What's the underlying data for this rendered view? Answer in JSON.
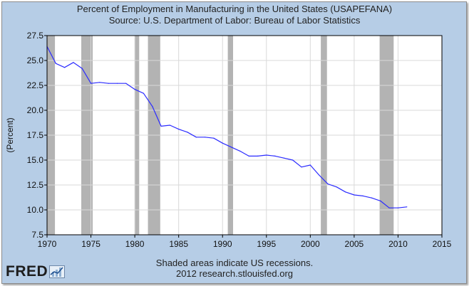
{
  "title_line1": "Percent of Employment in Manufacturing in the United States (USAPEFANA)",
  "title_line2": "Source: U.S. Department of Labor: Bureau of Labor Statistics",
  "footer_line1": "Shaded areas indicate US recessions.",
  "footer_line2": "2012 research.stlouisfed.org",
  "logo_text": "FRED",
  "colors": {
    "background": "#b6cde6",
    "plot_bg": "#ffffff",
    "line": "#2b2bff",
    "recession": "#b3b3b3",
    "grid": "#d9d9d9"
  },
  "chart_data": {
    "type": "line",
    "title": "Percent of Employment in Manufacturing in the United States (USAPEFANA)",
    "subtitle": "Source: U.S. Department of Labor: Bureau of Labor Statistics",
    "xlabel": "",
    "ylabel": "(Percent)",
    "xlim": [
      1970,
      2015
    ],
    "ylim": [
      7.5,
      27.5
    ],
    "xticks": [
      1970,
      1975,
      1980,
      1985,
      1990,
      1995,
      2000,
      2005,
      2010,
      2015
    ],
    "yticks": [
      7.5,
      10.0,
      12.5,
      15.0,
      17.5,
      20.0,
      22.5,
      25.0,
      27.5
    ],
    "ytick_labels": [
      "7.5",
      "10.0",
      "12.5",
      "15.0",
      "17.5",
      "20.0",
      "22.5",
      "25.0",
      "27.5"
    ],
    "grid": true,
    "series": [
      {
        "name": "USAPEFANA",
        "x": [
          1970,
          1971,
          1972,
          1973,
          1974,
          1975,
          1976,
          1977,
          1978,
          1979,
          1980,
          1981,
          1982,
          1983,
          1984,
          1985,
          1986,
          1987,
          1988,
          1989,
          1990,
          1991,
          1992,
          1993,
          1994,
          1995,
          1996,
          1997,
          1998,
          1999,
          2000,
          2001,
          2002,
          2003,
          2004,
          2005,
          2006,
          2007,
          2008,
          2009,
          2010,
          2011
        ],
        "values": [
          26.4,
          24.7,
          24.3,
          24.8,
          24.2,
          22.7,
          22.8,
          22.7,
          22.7,
          22.7,
          22.1,
          21.7,
          20.4,
          18.4,
          18.5,
          18.1,
          17.8,
          17.3,
          17.3,
          17.2,
          16.7,
          16.3,
          15.9,
          15.4,
          15.4,
          15.5,
          15.4,
          15.2,
          15.0,
          14.3,
          14.5,
          13.5,
          12.6,
          12.3,
          11.8,
          11.5,
          11.4,
          11.2,
          10.9,
          10.2,
          10.2,
          10.3
        ]
      }
    ],
    "recessions": [
      [
        1970.0,
        1970.9
      ],
      [
        1973.9,
        1975.2
      ],
      [
        1980.0,
        1980.5
      ],
      [
        1981.5,
        1982.9
      ],
      [
        1990.6,
        1991.2
      ],
      [
        2001.2,
        2001.9
      ],
      [
        2007.9,
        2009.5
      ]
    ]
  }
}
